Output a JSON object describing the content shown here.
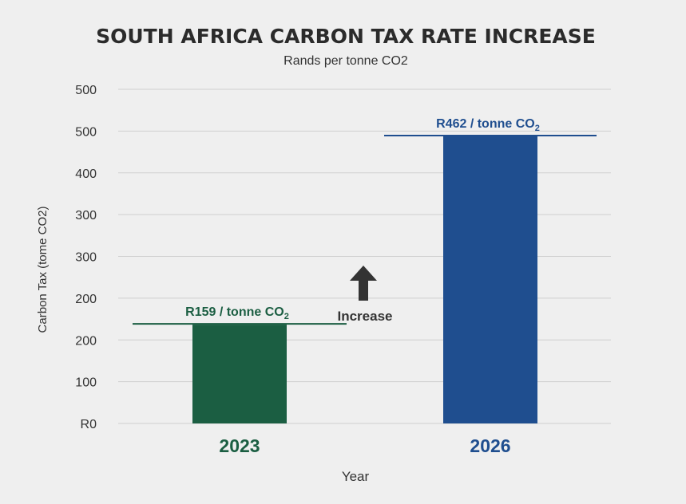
{
  "chart_data": {
    "type": "bar",
    "title": "SOUTH AFRICA CARBON TAX RATE INCREASE",
    "subtitle": "Rands per tonne CO2",
    "xlabel": "Year",
    "ylabel": "Carbon Tax (tome CO2)",
    "categories": [
      "2023",
      "2026"
    ],
    "series": [
      {
        "values": [
          159,
          462
        ]
      }
    ],
    "bar_colors": [
      "#1b5e42",
      "#1f4e8f"
    ],
    "label_colors": [
      "#1b5e42",
      "#1f4e8f"
    ],
    "data_labels": [
      {
        "prefix": "R159 / tonne CO",
        "sub": "2"
      },
      {
        "prefix": "R462 / tonne CO",
        "sub": "2"
      }
    ],
    "ytick_labels": [
      "R0",
      "100",
      "200",
      "200",
      "300",
      "300",
      "400",
      "500",
      "500"
    ],
    "grid": true,
    "annotation": {
      "text": "Increase",
      "icon": "up-arrow-icon",
      "color": "#333333"
    },
    "axis_text_color": "#333333",
    "grid_color": "#cfcfcf"
  }
}
